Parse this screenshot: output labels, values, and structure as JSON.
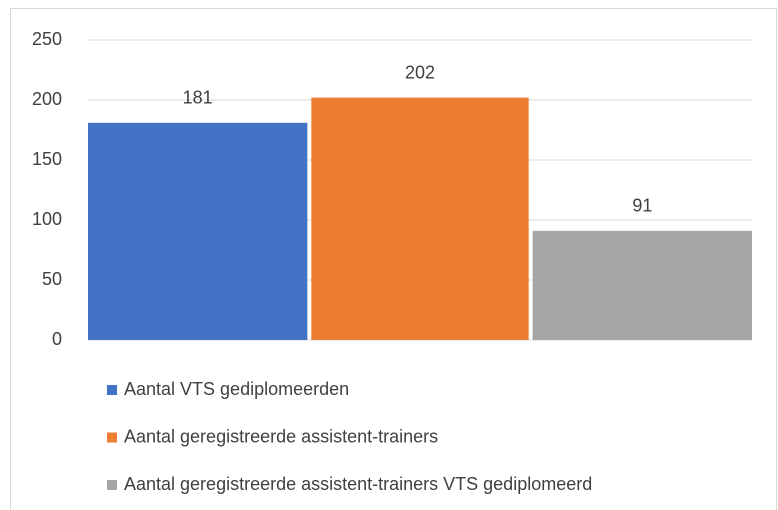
{
  "chart_data": {
    "type": "bar",
    "categories": [
      null
    ],
    "series": [
      {
        "name": "Aantal VTS gediplomeerden",
        "color": "#4472c4",
        "values": [
          181
        ]
      },
      {
        "name": "Aantal geregistreerde assistent-trainers",
        "color": "#ed7d31",
        "values": [
          202
        ]
      },
      {
        "name": "Aantal geregistreerde assistent-trainers VTS gediplomeerd",
        "color": "#a5a5a5",
        "values": [
          91
        ]
      }
    ],
    "ylim": [
      0,
      250
    ],
    "yticks": [
      0,
      50,
      100,
      150,
      200,
      250
    ],
    "grid": true,
    "legend": "bottom"
  }
}
